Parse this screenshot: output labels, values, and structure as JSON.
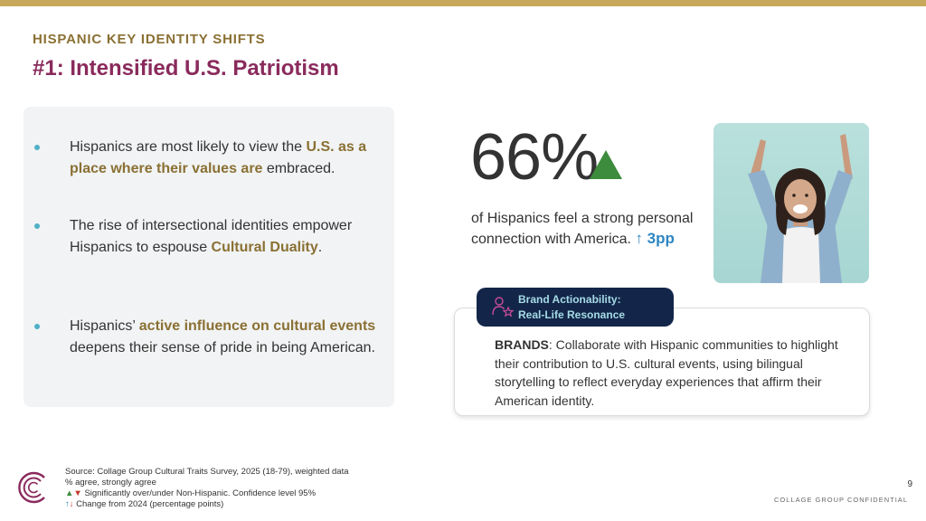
{
  "header": {
    "kicker": "HISPANIC KEY IDENTITY SHIFTS",
    "title": "#1: Intensified U.S. Patriotism"
  },
  "bullets": [
    {
      "parts": [
        {
          "text": "Hispanics are most likely to view the ",
          "highlight": false
        },
        {
          "text": "U.S. as a place where their values are",
          "highlight": true
        },
        {
          "text": " embraced.",
          "highlight": false
        }
      ]
    },
    {
      "parts": [
        {
          "text": "The rise of intersectional identities empower Hispanics to espouse ",
          "highlight": false
        },
        {
          "text": "Cultural Duality",
          "highlight": true
        },
        {
          "text": ".",
          "highlight": false
        }
      ]
    },
    {
      "parts": [
        {
          "text": "Hispanics’ ",
          "highlight": false
        },
        {
          "text": "active influence on cultural events",
          "highlight": true
        },
        {
          "text": " deepens their sense of pride in being American.",
          "highlight": false
        }
      ]
    }
  ],
  "stat": {
    "value": "66%",
    "description": "of Hispanics feel a strong personal connection with America.",
    "change": "↑ 3pp"
  },
  "actionability": {
    "label_line1": "Brand Actionability:",
    "label_line2": "Real-Life Resonance",
    "brand_prefix": "BRANDS",
    "body": ": Collaborate with Hispanic communities to highlight their contribution to U.S. cultural events, using bilingual storytelling to reflect everyday experiences that affirm their American identity."
  },
  "footer": {
    "source": "Source: Collage Group Cultural Traits Survey, 2025 (18-79), weighted data",
    "agree": "% agree, strongly agree",
    "sig_symbols_up": "▲",
    "sig_symbols_down": "▼",
    "sig_text": " Significantly over/under Non-Hispanic. Confidence level 95%",
    "chg_symbols_up": "↑",
    "chg_symbols_down": "↓",
    "chg_text": " Change from 2024 (percentage points)",
    "page_number": "9",
    "confidential": "COLLAGE GROUP CONFIDENTIAL"
  },
  "colors": {
    "accent_gold": "#c8a95c",
    "title_magenta": "#8a2a5c",
    "highlight_gold": "#8a7033",
    "bullet_teal": "#4fb0c6",
    "up_green": "#3d8b3d",
    "change_blue": "#2e86c1",
    "pill_navy": "#13264a"
  },
  "icons": {
    "stat_indicator": "green-up-triangle-icon",
    "actionability": "person-star-icon",
    "logo": "collage-group-logo"
  }
}
